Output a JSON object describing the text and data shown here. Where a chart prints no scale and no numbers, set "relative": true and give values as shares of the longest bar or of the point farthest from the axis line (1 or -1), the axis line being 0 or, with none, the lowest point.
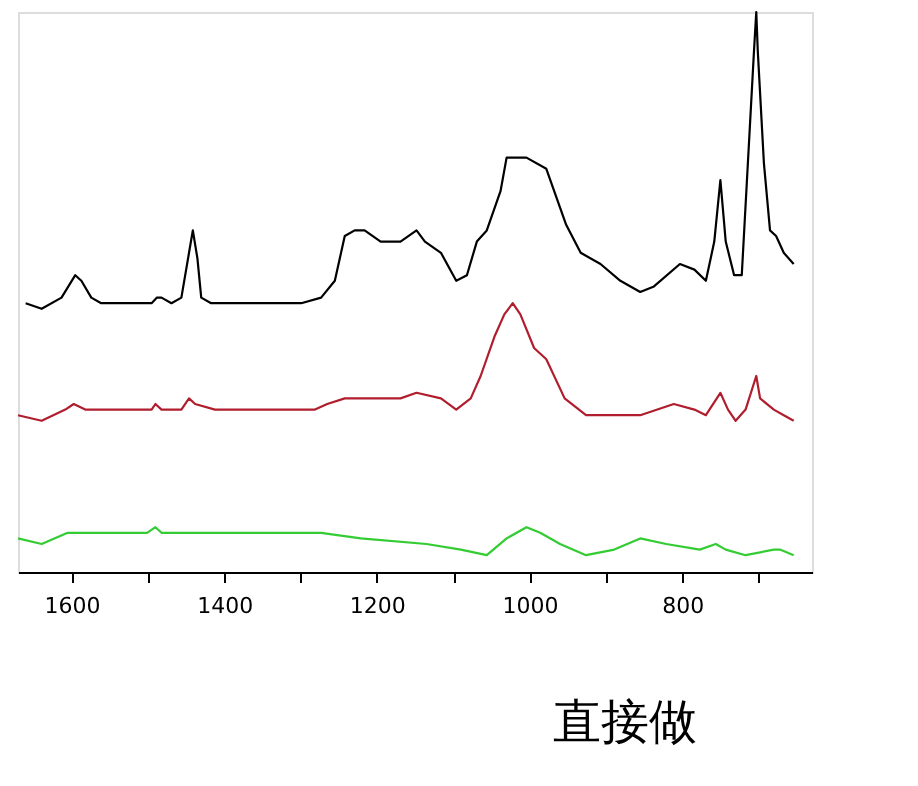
{
  "chart_data": {
    "type": "line",
    "relative": true,
    "grid": false,
    "line_style": "solid",
    "marker": "none",
    "xlim": [
      1670,
      630
    ],
    "xticks": [
      1600,
      {
        "value": 1500,
        "label": null
      },
      1400,
      {
        "value": 1300,
        "label": null
      },
      1200,
      {
        "value": 1100,
        "label": null
      },
      1000,
      {
        "value": 900,
        "label": null
      },
      800,
      {
        "value": 700,
        "label": null
      }
    ],
    "annotations": [
      "直接做"
    ],
    "series": [
      {
        "color": "#000000",
        "x": [
          1660,
          1639,
          1613,
          1595,
          1587,
          1574,
          1561,
          1495,
          1488,
          1482,
          1469,
          1456,
          1446,
          1441,
          1435,
          1430,
          1417,
          1299,
          1273,
          1255,
          1242,
          1229,
          1216,
          1195,
          1169,
          1148,
          1137,
          1116,
          1096,
          1082,
          1069,
          1056,
          1038,
          1030,
          1004,
          978,
          952,
          933,
          907,
          881,
          855,
          837,
          803,
          784,
          769,
          758,
          750,
          743,
          732,
          722,
          714,
          706,
          703,
          701,
          693,
          685,
          677,
          667,
          654
        ],
        "values": [
          0.48,
          0.47,
          0.49,
          0.53,
          0.52,
          0.49,
          0.48,
          0.48,
          0.49,
          0.49,
          0.48,
          0.49,
          0.57,
          0.61,
          0.56,
          0.49,
          0.48,
          0.48,
          0.49,
          0.52,
          0.6,
          0.61,
          0.61,
          0.59,
          0.59,
          0.61,
          0.59,
          0.57,
          0.52,
          0.53,
          0.59,
          0.61,
          0.68,
          0.74,
          0.74,
          0.72,
          0.62,
          0.57,
          0.55,
          0.52,
          0.5,
          0.51,
          0.55,
          0.54,
          0.52,
          0.59,
          0.7,
          0.59,
          0.53,
          0.53,
          0.73,
          0.93,
          1.0,
          0.93,
          0.73,
          0.61,
          0.6,
          0.57,
          0.55
        ]
      },
      {
        "color": "#b01e2e",
        "x": [
          1670,
          1639,
          1608,
          1597,
          1582,
          1553,
          1495,
          1490,
          1482,
          1456,
          1446,
          1438,
          1412,
          1281,
          1265,
          1242,
          1169,
          1148,
          1116,
          1096,
          1077,
          1064,
          1046,
          1033,
          1022,
          1012,
          994,
          978,
          954,
          926,
          889,
          855,
          811,
          784,
          769,
          750,
          740,
          730,
          717,
          703,
          698,
          680,
          667,
          654
        ],
        "values": [
          0.28,
          0.27,
          0.29,
          0.3,
          0.29,
          0.29,
          0.29,
          0.3,
          0.29,
          0.29,
          0.31,
          0.3,
          0.29,
          0.29,
          0.3,
          0.31,
          0.31,
          0.32,
          0.31,
          0.29,
          0.31,
          0.35,
          0.42,
          0.46,
          0.48,
          0.46,
          0.4,
          0.38,
          0.31,
          0.28,
          0.28,
          0.28,
          0.3,
          0.29,
          0.28,
          0.32,
          0.29,
          0.27,
          0.29,
          0.35,
          0.31,
          0.29,
          0.28,
          0.27
        ]
      },
      {
        "color": "#33cc33",
        "x": [
          1670,
          1639,
          1605,
          1553,
          1501,
          1490,
          1482,
          1273,
          1221,
          1135,
          1090,
          1056,
          1030,
          1004,
          986,
          960,
          926,
          889,
          855,
          821,
          777,
          756,
          743,
          717,
          680,
          672,
          654
        ],
        "values": [
          0.06,
          0.05,
          0.07,
          0.07,
          0.07,
          0.08,
          0.07,
          0.07,
          0.06,
          0.05,
          0.04,
          0.03,
          0.06,
          0.08,
          0.07,
          0.05,
          0.03,
          0.04,
          0.06,
          0.05,
          0.04,
          0.05,
          0.04,
          0.03,
          0.04,
          0.04,
          0.03
        ]
      }
    ]
  }
}
